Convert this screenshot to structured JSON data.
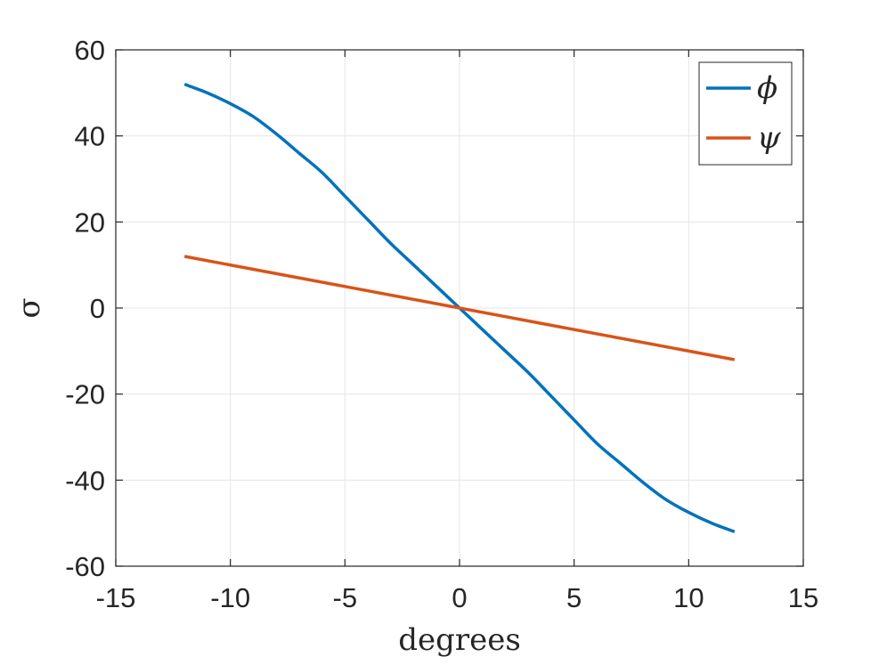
{
  "chart_data": {
    "type": "line",
    "xlabel": "degrees",
    "ylabel": "σ",
    "xlim": [
      -15,
      15
    ],
    "ylim": [
      -60,
      60
    ],
    "xticks": [
      -15,
      -10,
      -5,
      0,
      5,
      10,
      15
    ],
    "yticks": [
      -60,
      -40,
      -20,
      0,
      20,
      40,
      60
    ],
    "grid": true,
    "legend_position": "top-right",
    "series": [
      {
        "name": "ϕ",
        "color": "#0072bd",
        "x": [
          -12,
          -11,
          -10,
          -9,
          -8,
          -7,
          -6,
          -5,
          -4,
          -3,
          -2,
          -1,
          0,
          1,
          2,
          3,
          4,
          5,
          6,
          7,
          8,
          9,
          10,
          11,
          12
        ],
        "y": [
          52,
          50,
          47.5,
          44.5,
          40.5,
          36,
          31.5,
          26,
          20.5,
          15,
          10,
          5,
          0,
          -5,
          -10,
          -15,
          -20.5,
          -26,
          -31.5,
          -36,
          -40.5,
          -44.5,
          -47.5,
          -50,
          -52
        ]
      },
      {
        "name": "ψ",
        "color": "#d95319",
        "x": [
          -12,
          12
        ],
        "y": [
          12,
          -12
        ]
      }
    ]
  }
}
